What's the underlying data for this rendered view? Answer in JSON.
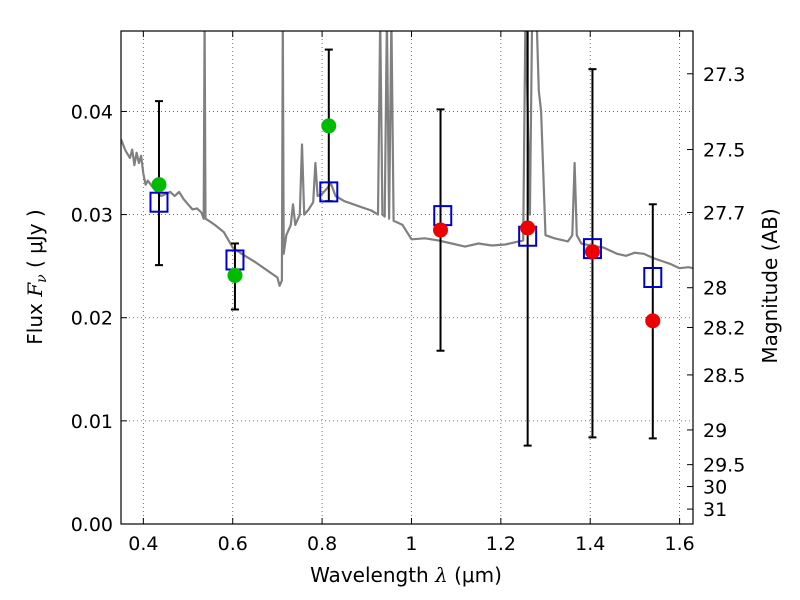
{
  "chart_data": {
    "type": "scatter",
    "title": "",
    "xlabel": {
      "prefix": "Wavelength  ",
      "symbol": "λ",
      "unit": " (μm)"
    },
    "ylabel": {
      "prefix": "Flux  ",
      "symbol": "F",
      "subscript": "ν",
      "unit": "  ( μJy )"
    },
    "y2label": "Magnitude (AB)",
    "xlim": [
      0.35,
      1.63
    ],
    "ylim": [
      0.0,
      0.0478
    ],
    "grid": true,
    "x_ticks": [
      0.4,
      0.6,
      0.8,
      1.0,
      1.2,
      1.4,
      1.6
    ],
    "x_tick_labels": [
      "0.4",
      "0.6",
      "0.8",
      "1",
      "1.2",
      "1.4",
      "1.6"
    ],
    "y_ticks": [
      0.0,
      0.01,
      0.02,
      0.03,
      0.04
    ],
    "y_tick_labels": [
      "0.00",
      "0.01",
      "0.02",
      "0.03",
      "0.04"
    ],
    "y2_ticks": [
      27.3,
      27.5,
      27.7,
      28,
      28.2,
      28.5,
      29,
      29.5,
      30,
      31
    ],
    "y2_tick_labels": [
      "27.3",
      "27.5",
      "27.7",
      "28",
      "28.2",
      "28.5",
      "29",
      "29.5",
      "30",
      "31"
    ],
    "colors": {
      "model": "#808080",
      "observed_opt": "#00bb00",
      "observed_nir": "#ee0000",
      "synthetic": "#0000cc",
      "errorbar": "#000000"
    },
    "series": [
      {
        "kind": "errorbar",
        "points": [
          {
            "x": 0.435,
            "y": 0.0329,
            "ylo": 0.0251,
            "yhi": 0.041
          },
          {
            "x": 0.605,
            "y": 0.0241,
            "ylo": 0.0208,
            "yhi": 0.0272
          },
          {
            "x": 0.815,
            "y": 0.0386,
            "ylo": 0.0313,
            "yhi": 0.046
          },
          {
            "x": 1.065,
            "y": 0.0285,
            "ylo": 0.0168,
            "yhi": 0.0402
          },
          {
            "x": 1.26,
            "y": 0.0287,
            "ylo": 0.0076,
            "yhi": 0.048
          },
          {
            "x": 1.405,
            "y": 0.0264,
            "ylo": 0.0084,
            "yhi": 0.0441
          },
          {
            "x": 1.54,
            "y": 0.0197,
            "ylo": 0.0083,
            "yhi": 0.031
          }
        ]
      },
      {
        "kind": "points",
        "group": "observed_opt",
        "points": [
          {
            "x": 0.435,
            "y": 0.0329
          },
          {
            "x": 0.605,
            "y": 0.0241
          },
          {
            "x": 0.815,
            "y": 0.0386
          }
        ]
      },
      {
        "kind": "points",
        "group": "observed_nir",
        "points": [
          {
            "x": 1.065,
            "y": 0.0285
          },
          {
            "x": 1.26,
            "y": 0.0287
          },
          {
            "x": 1.405,
            "y": 0.0264
          },
          {
            "x": 1.54,
            "y": 0.0197
          }
        ]
      },
      {
        "kind": "squares",
        "group": "synthetic",
        "points": [
          {
            "x": 0.435,
            "y": 0.0312
          },
          {
            "x": 0.605,
            "y": 0.0256
          },
          {
            "x": 0.815,
            "y": 0.0322
          },
          {
            "x": 1.07,
            "y": 0.0299
          },
          {
            "x": 1.26,
            "y": 0.0279
          },
          {
            "x": 1.405,
            "y": 0.0267
          },
          {
            "x": 1.54,
            "y": 0.0239
          }
        ]
      },
      {
        "kind": "model_spectrum",
        "points": [
          [
            0.35,
            0.0373
          ],
          [
            0.36,
            0.0362
          ],
          [
            0.37,
            0.0355
          ],
          [
            0.375,
            0.0363
          ],
          [
            0.38,
            0.0348
          ],
          [
            0.385,
            0.036
          ],
          [
            0.39,
            0.035
          ],
          [
            0.395,
            0.0357
          ],
          [
            0.4,
            0.034
          ],
          [
            0.405,
            0.0329
          ],
          [
            0.41,
            0.0333
          ],
          [
            0.42,
            0.0327
          ],
          [
            0.43,
            0.0322
          ],
          [
            0.44,
            0.0318
          ],
          [
            0.45,
            0.032
          ],
          [
            0.46,
            0.0322
          ],
          [
            0.47,
            0.0318
          ],
          [
            0.48,
            0.0322
          ],
          [
            0.49,
            0.0315
          ],
          [
            0.5,
            0.031
          ],
          [
            0.51,
            0.0305
          ],
          [
            0.52,
            0.0306
          ],
          [
            0.53,
            0.0302
          ],
          [
            0.535,
            0.0296
          ],
          [
            0.537,
            0.049
          ],
          [
            0.539,
            0.0296
          ],
          [
            0.55,
            0.0293
          ],
          [
            0.56,
            0.029
          ],
          [
            0.58,
            0.0283
          ],
          [
            0.6,
            0.0268
          ],
          [
            0.62,
            0.0262
          ],
          [
            0.65,
            0.0254
          ],
          [
            0.68,
            0.0245
          ],
          [
            0.7,
            0.0239
          ],
          [
            0.705,
            0.0231
          ],
          [
            0.71,
            0.0236
          ],
          [
            0.712,
            0.049
          ],
          [
            0.714,
            0.0262
          ],
          [
            0.72,
            0.028
          ],
          [
            0.73,
            0.029
          ],
          [
            0.735,
            0.031
          ],
          [
            0.74,
            0.029
          ],
          [
            0.75,
            0.03
          ],
          [
            0.755,
            0.0368
          ],
          [
            0.76,
            0.03
          ],
          [
            0.77,
            0.0305
          ],
          [
            0.78,
            0.0312
          ],
          [
            0.785,
            0.035
          ],
          [
            0.79,
            0.0318
          ],
          [
            0.8,
            0.032
          ],
          [
            0.81,
            0.0325
          ],
          [
            0.82,
            0.033
          ],
          [
            0.83,
            0.0318
          ],
          [
            0.85,
            0.0313
          ],
          [
            0.87,
            0.031
          ],
          [
            0.89,
            0.0307
          ],
          [
            0.91,
            0.0304
          ],
          [
            0.925,
            0.03
          ],
          [
            0.93,
            0.049
          ],
          [
            0.935,
            0.03
          ],
          [
            0.94,
            0.0298
          ],
          [
            0.945,
            0.049
          ],
          [
            0.95,
            0.0296
          ],
          [
            0.955,
            0.049
          ],
          [
            0.96,
            0.0294
          ],
          [
            0.98,
            0.029
          ],
          [
            1.0,
            0.0276
          ],
          [
            1.03,
            0.0277
          ],
          [
            1.06,
            0.0275
          ],
          [
            1.09,
            0.0272
          ],
          [
            1.12,
            0.0269
          ],
          [
            1.15,
            0.0272
          ],
          [
            1.18,
            0.027
          ],
          [
            1.21,
            0.0271
          ],
          [
            1.24,
            0.0274
          ],
          [
            1.25,
            0.0275
          ],
          [
            1.255,
            0.049
          ],
          [
            1.26,
            0.04
          ],
          [
            1.265,
            0.03
          ],
          [
            1.27,
            0.049
          ],
          [
            1.275,
            0.049
          ],
          [
            1.28,
            0.049
          ],
          [
            1.285,
            0.042
          ],
          [
            1.29,
            0.04
          ],
          [
            1.3,
            0.028
          ],
          [
            1.32,
            0.0277
          ],
          [
            1.35,
            0.0274
          ],
          [
            1.36,
            0.028
          ],
          [
            1.365,
            0.035
          ],
          [
            1.37,
            0.028
          ],
          [
            1.38,
            0.0272
          ],
          [
            1.4,
            0.027
          ],
          [
            1.43,
            0.0268
          ],
          [
            1.46,
            0.0262
          ],
          [
            1.48,
            0.026
          ],
          [
            1.5,
            0.0263
          ],
          [
            1.52,
            0.0262
          ],
          [
            1.54,
            0.0258
          ],
          [
            1.56,
            0.0255
          ],
          [
            1.58,
            0.0252
          ],
          [
            1.6,
            0.0248
          ],
          [
            1.62,
            0.0249
          ],
          [
            1.63,
            0.0248
          ]
        ]
      }
    ]
  }
}
